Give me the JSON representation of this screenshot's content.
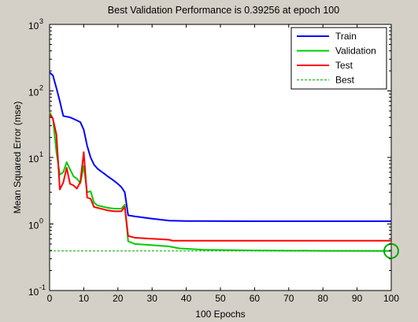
{
  "chart_data": {
    "type": "line",
    "title": "Best Validation Performance is 0.39256 at epoch 100",
    "xlabel": "100 Epochs",
    "ylabel": "Mean Squared Error  (mse)",
    "xlim": [
      0,
      100
    ],
    "ylim": [
      0.1,
      1000
    ],
    "yscale": "log",
    "grid": false,
    "legend_position": "top-right",
    "x_ticks": [
      0,
      10,
      20,
      30,
      40,
      50,
      60,
      70,
      80,
      90,
      100
    ],
    "y_ticks": [
      {
        "value": 0.1,
        "base": "10",
        "exp": "-1"
      },
      {
        "value": 1,
        "base": "10",
        "exp": "0"
      },
      {
        "value": 10,
        "base": "10",
        "exp": "1"
      },
      {
        "value": 100,
        "base": "10",
        "exp": "2"
      },
      {
        "value": 1000,
        "base": "10",
        "exp": "3"
      }
    ],
    "series": [
      {
        "name": "Train",
        "color": "#0000ff",
        "dashed": false,
        "points": [
          [
            0,
            190
          ],
          [
            1,
            170
          ],
          [
            2,
            110
          ],
          [
            3,
            70
          ],
          [
            4,
            42
          ],
          [
            5,
            41
          ],
          [
            6,
            40
          ],
          [
            7,
            38
          ],
          [
            8,
            36
          ],
          [
            9,
            34
          ],
          [
            10,
            26
          ],
          [
            11,
            15
          ],
          [
            12,
            10
          ],
          [
            13,
            7.8
          ],
          [
            14,
            6.8
          ],
          [
            15,
            6.2
          ],
          [
            16,
            5.7
          ],
          [
            17,
            5.2
          ],
          [
            18,
            4.8
          ],
          [
            19,
            4.4
          ],
          [
            20,
            4.0
          ],
          [
            21,
            3.6
          ],
          [
            22,
            3.0
          ],
          [
            23,
            1.35
          ],
          [
            25,
            1.3
          ],
          [
            30,
            1.2
          ],
          [
            35,
            1.12
          ],
          [
            40,
            1.11
          ],
          [
            60,
            1.1
          ],
          [
            80,
            1.1
          ],
          [
            100,
            1.1
          ]
        ]
      },
      {
        "name": "Validation",
        "color": "#00cc00",
        "dashed": false,
        "points": [
          [
            0,
            48
          ],
          [
            1,
            38
          ],
          [
            2,
            12
          ],
          [
            3,
            5.5
          ],
          [
            4,
            6.0
          ],
          [
            5,
            8.5
          ],
          [
            6,
            6.6
          ],
          [
            7,
            5.2
          ],
          [
            8,
            4.8
          ],
          [
            9,
            4.1
          ],
          [
            10,
            7.5
          ],
          [
            11,
            3.0
          ],
          [
            12,
            3.1
          ],
          [
            13,
            2.1
          ],
          [
            14,
            1.9
          ],
          [
            15,
            1.85
          ],
          [
            17,
            1.75
          ],
          [
            19,
            1.7
          ],
          [
            21,
            1.7
          ],
          [
            22,
            1.95
          ],
          [
            23,
            0.55
          ],
          [
            25,
            0.5
          ],
          [
            30,
            0.48
          ],
          [
            35,
            0.46
          ],
          [
            38,
            0.43
          ],
          [
            45,
            0.41
          ],
          [
            60,
            0.4
          ],
          [
            80,
            0.395
          ],
          [
            100,
            0.39256
          ]
        ]
      },
      {
        "name": "Test",
        "color": "#ff0000",
        "dashed": false,
        "points": [
          [
            0,
            45
          ],
          [
            1,
            38
          ],
          [
            2,
            22
          ],
          [
            3,
            3.3
          ],
          [
            4,
            4.2
          ],
          [
            5,
            7.0
          ],
          [
            6,
            4.0
          ],
          [
            7,
            3.8
          ],
          [
            8,
            3.4
          ],
          [
            9,
            4.3
          ],
          [
            10,
            12
          ],
          [
            11,
            2.5
          ],
          [
            12,
            2.4
          ],
          [
            13,
            1.8
          ],
          [
            14,
            1.75
          ],
          [
            15,
            1.7
          ],
          [
            17,
            1.6
          ],
          [
            19,
            1.55
          ],
          [
            21,
            1.55
          ],
          [
            22,
            1.8
          ],
          [
            23,
            0.66
          ],
          [
            25,
            0.62
          ],
          [
            30,
            0.6
          ],
          [
            35,
            0.58
          ],
          [
            36,
            0.56
          ],
          [
            50,
            0.56
          ],
          [
            70,
            0.56
          ],
          [
            100,
            0.56
          ]
        ]
      },
      {
        "name": "Best",
        "color": "#00aa00",
        "dashed": true,
        "points": [
          [
            0,
            0.39256
          ],
          [
            100,
            0.39256
          ]
        ]
      }
    ],
    "best_marker": {
      "x": 100,
      "y": 0.39256,
      "color": "#00aa00"
    }
  }
}
